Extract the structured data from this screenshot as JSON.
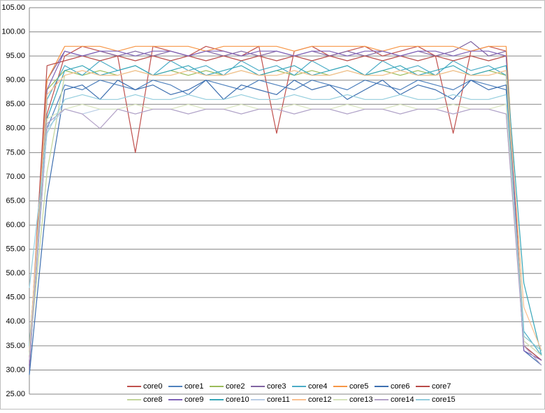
{
  "chart_data": {
    "type": "line",
    "ylim": [
      25,
      105
    ],
    "yticks": [
      {
        "value": 25,
        "label": "25.00"
      },
      {
        "value": 30,
        "label": "30.00"
      },
      {
        "value": 35,
        "label": "35.00"
      },
      {
        "value": 40,
        "label": "40.00"
      },
      {
        "value": 45,
        "label": "45.00"
      },
      {
        "value": 50,
        "label": "50.00"
      },
      {
        "value": 55,
        "label": "55.00"
      },
      {
        "value": 60,
        "label": "60.00"
      },
      {
        "value": 65,
        "label": "65.00"
      },
      {
        "value": 70,
        "label": "70.00"
      },
      {
        "value": 75,
        "label": "75.00"
      },
      {
        "value": 80,
        "label": "80.00"
      },
      {
        "value": 85,
        "label": "85.00"
      },
      {
        "value": 90,
        "label": "90.00"
      },
      {
        "value": 95,
        "label": "95.00"
      },
      {
        "value": 100,
        "label": "100.00"
      },
      {
        "value": 105,
        "label": "105.00"
      }
    ],
    "grid": true,
    "legend": "bottom",
    "series": [
      {
        "name": "core0",
        "color": "#c0504d",
        "values": [
          32,
          83,
          95,
          97,
          96,
          95,
          75,
          97,
          96,
          95,
          97,
          96,
          95,
          97,
          79,
          96,
          97,
          95,
          96,
          97,
          95,
          96,
          97,
          95,
          79,
          96,
          97,
          96,
          36,
          33
        ]
      },
      {
        "name": "core1",
        "color": "#4f81bd",
        "values": [
          31,
          80,
          89,
          88,
          90,
          89,
          88,
          90,
          89,
          87,
          90,
          89,
          88,
          90,
          89,
          88,
          90,
          89,
          88,
          90,
          89,
          88,
          90,
          89,
          88,
          90,
          89,
          88,
          35,
          32
        ]
      },
      {
        "name": "core2",
        "color": "#9bbb59",
        "values": [
          33,
          88,
          92,
          91,
          92,
          91,
          92,
          91,
          92,
          91,
          92,
          91,
          92,
          91,
          92,
          91,
          92,
          91,
          92,
          91,
          92,
          91,
          92,
          91,
          92,
          91,
          92,
          91,
          37,
          34
        ]
      },
      {
        "name": "core3",
        "color": "#8064a2",
        "values": [
          30,
          90,
          96,
          95,
          96,
          95,
          96,
          95,
          96,
          95,
          96,
          95,
          96,
          95,
          96,
          95,
          96,
          95,
          96,
          95,
          96,
          95,
          96,
          95,
          96,
          98,
          95,
          96,
          35,
          32
        ]
      },
      {
        "name": "core4",
        "color": "#4bacc6",
        "values": [
          34,
          86,
          93,
          91,
          94,
          92,
          93,
          91,
          94,
          92,
          93,
          91,
          94,
          92,
          93,
          91,
          94,
          92,
          93,
          91,
          94,
          92,
          93,
          91,
          94,
          92,
          93,
          91,
          38,
          33
        ]
      },
      {
        "name": "core5",
        "color": "#f79646",
        "values": [
          31,
          90,
          97,
          97,
          97,
          96,
          97,
          97,
          97,
          97,
          96,
          97,
          97,
          97,
          97,
          96,
          97,
          97,
          97,
          97,
          96,
          97,
          97,
          97,
          97,
          96,
          97,
          97,
          36,
          33
        ]
      },
      {
        "name": "core6",
        "color": "#3d6fb0",
        "values": [
          29,
          66,
          88,
          89,
          86,
          90,
          88,
          89,
          87,
          88,
          90,
          86,
          89,
          88,
          87,
          90,
          88,
          89,
          86,
          88,
          90,
          87,
          89,
          88,
          86,
          90,
          88,
          89,
          34,
          31
        ]
      },
      {
        "name": "core7",
        "color": "#b84a47",
        "values": [
          32,
          93,
          94,
          95,
          94,
          95,
          94,
          95,
          94,
          95,
          94,
          95,
          94,
          95,
          94,
          95,
          94,
          95,
          94,
          95,
          94,
          95,
          94,
          95,
          94,
          95,
          94,
          95,
          35,
          32
        ]
      },
      {
        "name": "core8",
        "color": "#c3d69b",
        "values": [
          33,
          71,
          91,
          92,
          91,
          91,
          92,
          91,
          91,
          92,
          91,
          91,
          92,
          91,
          91,
          92,
          91,
          91,
          92,
          91,
          91,
          92,
          91,
          91,
          92,
          91,
          91,
          92,
          36,
          33
        ]
      },
      {
        "name": "core9",
        "color": "#7f62b8",
        "values": [
          31,
          88,
          96,
          95,
          96,
          96,
          95,
          96,
          96,
          95,
          96,
          96,
          95,
          96,
          96,
          95,
          96,
          96,
          95,
          96,
          96,
          95,
          96,
          96,
          95,
          96,
          96,
          95,
          34,
          32
        ]
      },
      {
        "name": "core10",
        "color": "#36a6b8",
        "values": [
          35,
          82,
          92,
          93,
          91,
          92,
          93,
          91,
          92,
          93,
          91,
          92,
          93,
          91,
          92,
          93,
          91,
          92,
          93,
          91,
          92,
          93,
          91,
          92,
          93,
          91,
          92,
          93,
          48,
          33
        ]
      },
      {
        "name": "core11",
        "color": "#b9cde5",
        "values": [
          32,
          80,
          84,
          83,
          84,
          84,
          83,
          84,
          84,
          83,
          84,
          84,
          83,
          84,
          84,
          83,
          84,
          84,
          83,
          84,
          84,
          83,
          84,
          84,
          83,
          84,
          84,
          83,
          36,
          33
        ]
      },
      {
        "name": "core12",
        "color": "#fac090",
        "values": [
          34,
          87,
          91,
          92,
          91,
          91,
          92,
          91,
          91,
          92,
          91,
          91,
          92,
          91,
          91,
          92,
          91,
          91,
          92,
          91,
          91,
          92,
          91,
          91,
          92,
          91,
          91,
          92,
          43,
          34
        ]
      },
      {
        "name": "core13",
        "color": "#d7e4bd",
        "values": [
          33,
          82,
          84,
          85,
          84,
          84,
          85,
          84,
          84,
          85,
          84,
          84,
          85,
          84,
          84,
          85,
          84,
          84,
          85,
          84,
          84,
          85,
          84,
          84,
          85,
          84,
          84,
          85,
          36,
          33
        ]
      },
      {
        "name": "core14",
        "color": "#b3a2c7",
        "values": [
          32,
          81,
          84,
          83,
          80,
          84,
          83,
          84,
          84,
          83,
          84,
          84,
          83,
          84,
          84,
          83,
          84,
          84,
          83,
          84,
          84,
          83,
          84,
          84,
          83,
          84,
          84,
          83,
          35,
          31
        ]
      },
      {
        "name": "core15",
        "color": "#93cddd",
        "values": [
          47,
          79,
          86,
          87,
          86,
          86,
          87,
          86,
          86,
          87,
          86,
          86,
          87,
          86,
          86,
          87,
          86,
          86,
          87,
          86,
          86,
          87,
          86,
          86,
          87,
          86,
          86,
          87,
          37,
          34
        ]
      }
    ]
  }
}
